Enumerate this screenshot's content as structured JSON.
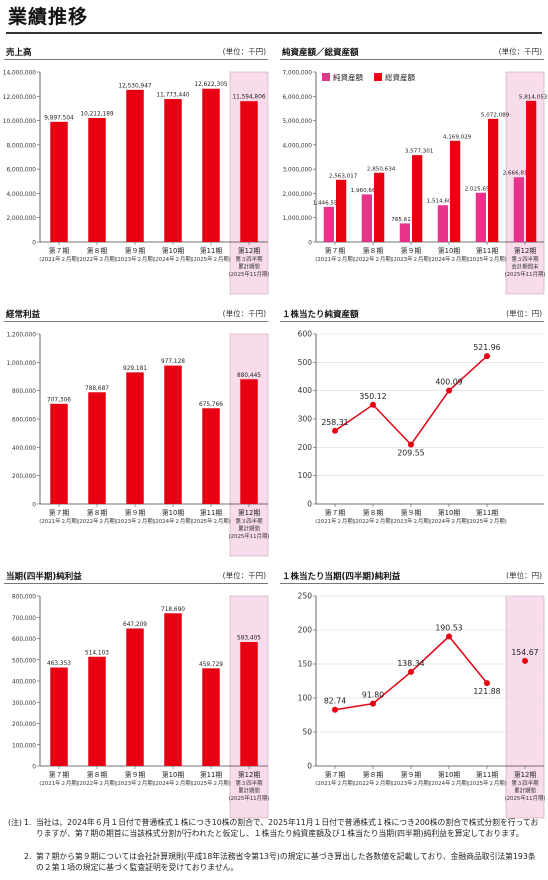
{
  "page": {
    "title": "業績推移"
  },
  "colors": {
    "net_assets": "#e8338a",
    "total_assets": "#e60012",
    "bar": "#e60012",
    "line": "#e60012",
    "highlight": "#f8dceb"
  },
  "chart_data": [
    {
      "id": "sales",
      "type": "bar",
      "title": "売上高",
      "unit": "(単位：千円)",
      "categories": [
        {
          "label": "第７期",
          "sub": [
            "(2021年２月期)"
          ]
        },
        {
          "label": "第８期",
          "sub": [
            "(2022年２月期)"
          ]
        },
        {
          "label": "第９期",
          "sub": [
            "(2023年２月期)"
          ]
        },
        {
          "label": "第10期",
          "sub": [
            "(2024年２月期)"
          ]
        },
        {
          "label": "第11期",
          "sub": [
            "(2025年２月期)"
          ]
        },
        {
          "label": "第12期",
          "sub": [
            "第３四半期",
            "累計期間",
            "(2025年11月期)"
          ]
        }
      ],
      "values": [
        9897504,
        10212189,
        12530947,
        11773440,
        12622305,
        11594806
      ],
      "value_labels": [
        "9,897,504",
        "10,212,189",
        "12,530,947",
        "11,773,440",
        "12,622,305",
        "11,594,806"
      ],
      "ylim": [
        0,
        14000000
      ],
      "ticks": [
        "0",
        "2,000,000",
        "4,000,000",
        "6,000,000",
        "8,000,000",
        "10,000,000",
        "12,000,000",
        "14,000,000"
      ],
      "highlight_last": true
    },
    {
      "id": "assets",
      "type": "bar",
      "title": "純資産額／総資産額",
      "unit": "(単位：千円)",
      "categories": [
        {
          "label": "第７期",
          "sub": [
            "(2021年２月期)"
          ]
        },
        {
          "label": "第８期",
          "sub": [
            "(2022年２月期)"
          ]
        },
        {
          "label": "第９期",
          "sub": [
            "(2023年２月期)"
          ]
        },
        {
          "label": "第10期",
          "sub": [
            "(2024年２月期)"
          ]
        },
        {
          "label": "第11期",
          "sub": [
            "(2025年２月期)"
          ]
        },
        {
          "label": "第12期",
          "sub": [
            "第３四半期",
            "会計期間末",
            "(2025年11月期)"
          ]
        }
      ],
      "series": [
        {
          "name": "純資産額",
          "values": [
            1446557,
            1960660,
            765611,
            1514602,
            2025655,
            2666818
          ],
          "value_labels": [
            "1,446,557",
            "1,960,660",
            "765,611",
            "1,514,602",
            "2,025,655",
            "2,666,818"
          ]
        },
        {
          "name": "総資産額",
          "values": [
            2563017,
            2850634,
            3577301,
            4169029,
            5072089,
            5814053
          ],
          "value_labels": [
            "2,563,017",
            "2,850,634",
            "3,577,301",
            "4,169,029",
            "5,072,089",
            "5,814,053"
          ]
        }
      ],
      "legend": "top-left",
      "ylim": [
        0,
        7000000
      ],
      "ticks": [
        "0",
        "1,000,000",
        "2,000,000",
        "3,000,000",
        "4,000,000",
        "5,000,000",
        "6,000,000",
        "7,000,000"
      ],
      "highlight_last": true
    },
    {
      "id": "ordinary-profit",
      "type": "bar",
      "title": "経常利益",
      "unit": "(単位：千円)",
      "categories": [
        {
          "label": "第７期",
          "sub": [
            "(2021年２月期)"
          ]
        },
        {
          "label": "第８期",
          "sub": [
            "(2022年２月期)"
          ]
        },
        {
          "label": "第９期",
          "sub": [
            "(2023年２月期)"
          ]
        },
        {
          "label": "第10期",
          "sub": [
            "(2024年２月期)"
          ]
        },
        {
          "label": "第11期",
          "sub": [
            "(2025年２月期)"
          ]
        },
        {
          "label": "第12期",
          "sub": [
            "第３四半期",
            "累計期間",
            "(2025年11月期)"
          ]
        }
      ],
      "values": [
        707306,
        788687,
        929181,
        977128,
        675766,
        880445
      ],
      "value_labels": [
        "707,306",
        "788,687",
        "929,181",
        "977,128",
        "675,766",
        "880,445"
      ],
      "ylim": [
        0,
        1200000
      ],
      "ticks": [
        "0",
        "200,000",
        "400,000",
        "600,000",
        "800,000",
        "1,000,000",
        "1,200,000"
      ],
      "highlight_last": true
    },
    {
      "id": "bps",
      "type": "line",
      "title": "１株当たり純資産額",
      "unit": "(単位：円)",
      "categories": [
        {
          "label": "第７期",
          "sub": [
            "(2021年２月期)"
          ]
        },
        {
          "label": "第８期",
          "sub": [
            "(2022年２月期)"
          ]
        },
        {
          "label": "第９期",
          "sub": [
            "(2023年２月期)"
          ]
        },
        {
          "label": "第10期",
          "sub": [
            "(2024年２月期)"
          ]
        },
        {
          "label": "第11期",
          "sub": [
            "(2025年２月期)"
          ]
        }
      ],
      "values": [
        258.31,
        350.12,
        209.55,
        400.09,
        521.96
      ],
      "value_labels": [
        "258.31",
        "350.12",
        "209.55",
        "400.09",
        "521.96"
      ],
      "label_pos": [
        "above",
        "above",
        "below",
        "above",
        "above"
      ],
      "ylim": [
        0,
        600
      ],
      "ticks": [
        "0",
        "100",
        "200",
        "300",
        "400",
        "500",
        "600"
      ],
      "highlight_last": false
    },
    {
      "id": "net-income",
      "type": "bar",
      "title": "当期(四半期)純利益",
      "unit": "(単位：千円)",
      "categories": [
        {
          "label": "第７期",
          "sub": [
            "(2021年２月期)"
          ]
        },
        {
          "label": "第８期",
          "sub": [
            "(2022年２月期)"
          ]
        },
        {
          "label": "第９期",
          "sub": [
            "(2023年２月期)"
          ]
        },
        {
          "label": "第10期",
          "sub": [
            "(2024年２月期)"
          ]
        },
        {
          "label": "第11期",
          "sub": [
            "(2025年２月期)"
          ]
        },
        {
          "label": "第12期",
          "sub": [
            "第３四半期",
            "累計期間",
            "(2025年11月期)"
          ]
        }
      ],
      "values": [
        463353,
        514103,
        647209,
        718690,
        459729,
        583405
      ],
      "value_labels": [
        "463,353",
        "514,103",
        "647,209",
        "718,690",
        "459,729",
        "583,405"
      ],
      "ylim": [
        0,
        800000
      ],
      "ticks": [
        "0",
        "100,000",
        "200,000",
        "300,000",
        "400,000",
        "500,000",
        "600,000",
        "700,000",
        "800,000"
      ],
      "highlight_last": true
    },
    {
      "id": "eps",
      "type": "line",
      "title": "１株当たり当期(四半期)純利益",
      "unit": "(単位：円)",
      "categories": [
        {
          "label": "第７期",
          "sub": [
            "(2021年２月期)"
          ]
        },
        {
          "label": "第８期",
          "sub": [
            "(2022年２月期)"
          ]
        },
        {
          "label": "第９期",
          "sub": [
            "(2023年２月期)"
          ]
        },
        {
          "label": "第10期",
          "sub": [
            "(2024年２月期)"
          ]
        },
        {
          "label": "第11期",
          "sub": [
            "(2025年２月期)"
          ]
        },
        {
          "label": "第12期",
          "sub": [
            "第３四半期",
            "累計期間",
            "(2025年11月期)"
          ]
        }
      ],
      "values": [
        82.74,
        91.8,
        138.34,
        190.53,
        121.88,
        154.67
      ],
      "value_labels": [
        "82.74",
        "91.80",
        "138.34",
        "190.53",
        "121.88",
        "154.67"
      ],
      "label_pos": [
        "above",
        "above",
        "above",
        "above",
        "below",
        "above"
      ],
      "connect_points": 5,
      "ylim": [
        0,
        250
      ],
      "ticks": [
        "0",
        "50",
        "100",
        "150",
        "200",
        "250"
      ],
      "highlight_last": true
    }
  ],
  "notes": {
    "label": "(注)",
    "items": [
      {
        "num": "1.",
        "text": "当社は、2024年６月１日付で普通株式１株につき10株の割合で、2025年11月１日付で普通株式１株につき200株の割合で株式分割を行っておりますが、第７期の期首に当該株式分割が行われたと仮定し、１株当たり純資産額及び１株当たり当期(四半期)純利益を算定しております。"
      },
      {
        "num": "2.",
        "text": "第７期から第９期については会社計算規則(平成18年法務省令第13号)の規定に基づき算出した各数値を記載しており、金融商品取引法第193条の２第１項の規定に基づく監査証明を受けておりません。"
      }
    ]
  }
}
